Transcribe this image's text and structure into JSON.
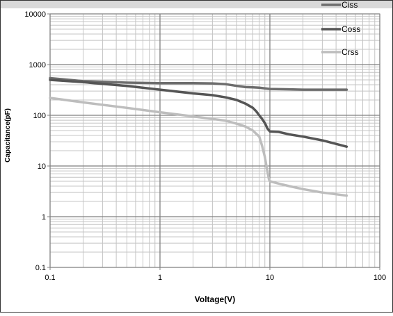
{
  "chart_data": {
    "type": "line",
    "title": "",
    "xlabel": "Voltage(V)",
    "ylabel": "Capacitance(pF)",
    "x_scale": "log",
    "y_scale": "log",
    "xlim": [
      0.1,
      100
    ],
    "ylim": [
      0.1,
      10000
    ],
    "grid": true,
    "legend_position": "top-right",
    "x_ticks": [
      "0.1",
      "1",
      "10",
      "100"
    ],
    "y_ticks": [
      "0.1",
      "1",
      "10",
      "100",
      "1000",
      "10000"
    ],
    "series": [
      {
        "name": "Ciss",
        "color": "#6d6d6d",
        "x": [
          0.1,
          0.2,
          0.5,
          1,
          2,
          3,
          4,
          5,
          6,
          7,
          8,
          9,
          10,
          15,
          20,
          30,
          50
        ],
        "y": [
          540,
          470,
          440,
          430,
          430,
          425,
          410,
          380,
          360,
          355,
          350,
          340,
          330,
          325,
          320,
          320,
          320
        ]
      },
      {
        "name": "Coss",
        "color": "#555555",
        "x": [
          0.1,
          0.2,
          0.5,
          1,
          2,
          3,
          4,
          5,
          6,
          7,
          7.5,
          8,
          8.5,
          9,
          9.5,
          10,
          12,
          15,
          20,
          30,
          50
        ],
        "y": [
          500,
          450,
          380,
          320,
          270,
          250,
          225,
          200,
          170,
          140,
          120,
          100,
          85,
          70,
          55,
          48,
          47,
          42,
          38,
          32,
          24
        ]
      },
      {
        "name": "Crss",
        "color": "#bdbdbd",
        "x": [
          0.1,
          0.2,
          0.5,
          1,
          2,
          3,
          4,
          5,
          6,
          7,
          8,
          8.5,
          9,
          9.3,
          9.6,
          9.8,
          10,
          12,
          15,
          20,
          30,
          50
        ],
        "y": [
          220,
          180,
          140,
          115,
          95,
          85,
          78,
          68,
          60,
          50,
          38,
          25,
          15,
          10,
          7,
          5.5,
          5,
          4.5,
          4,
          3.5,
          3,
          2.6
        ]
      }
    ]
  }
}
